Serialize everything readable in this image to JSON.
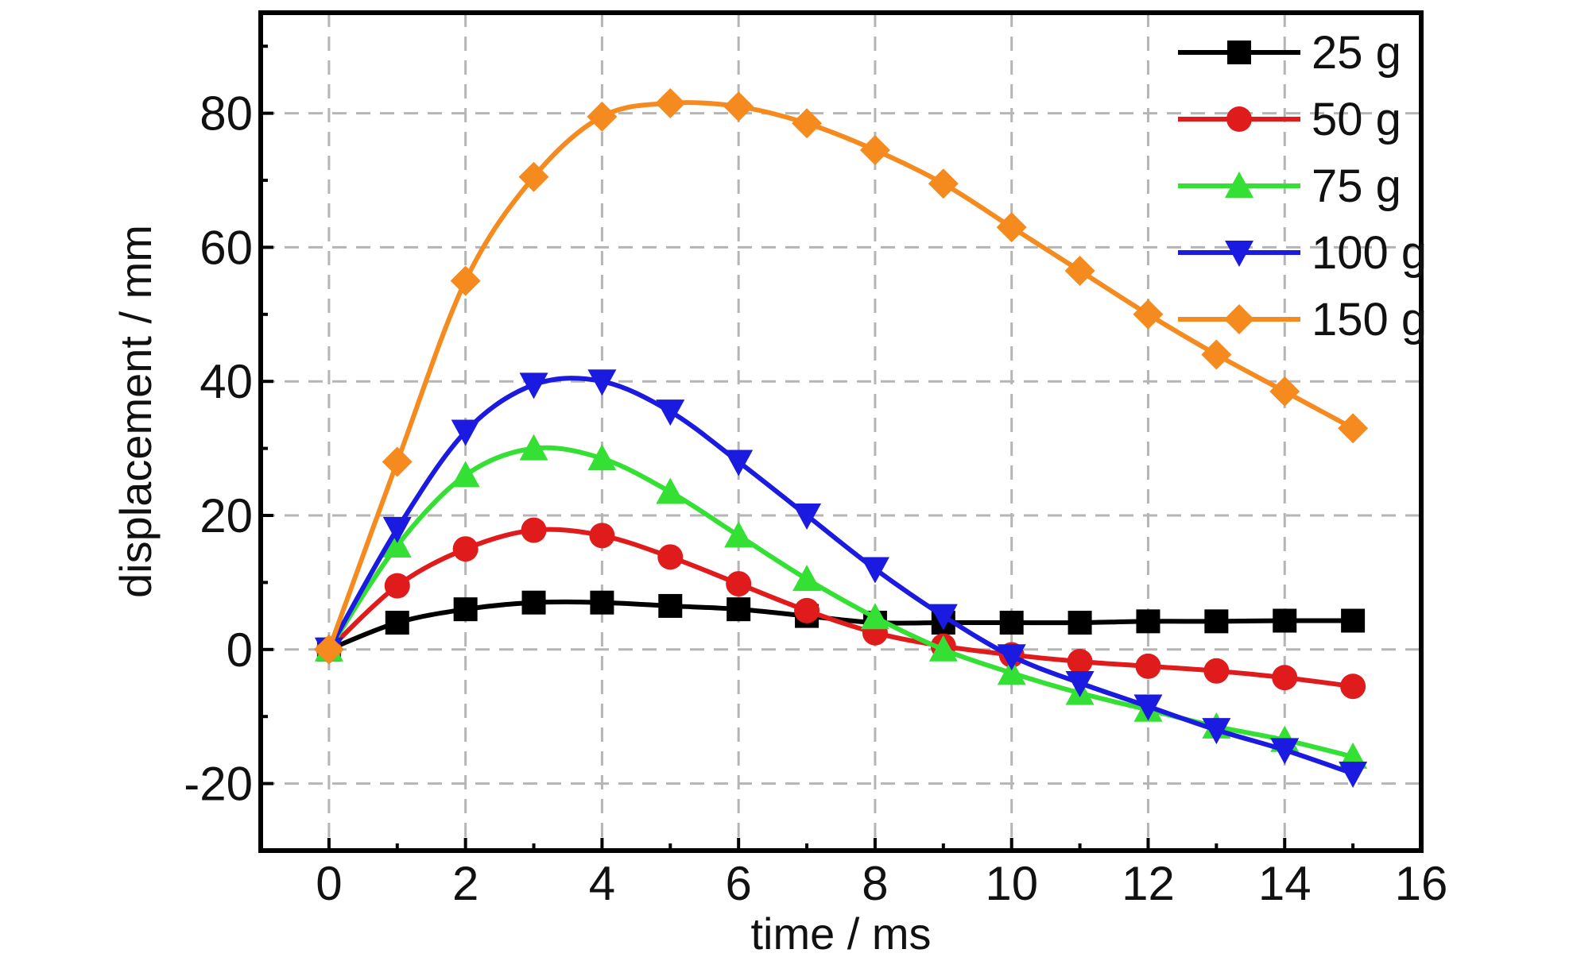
{
  "chart_data": {
    "type": "line",
    "title": "",
    "xlabel": "time / ms",
    "ylabel": "displacement / mm",
    "xlim": [
      -1,
      16
    ],
    "ylim": [
      -30,
      95
    ],
    "xticks": [
      0,
      2,
      4,
      6,
      8,
      10,
      12,
      14,
      16
    ],
    "xtick_labels": [
      "0",
      "2",
      "4",
      "6",
      "8",
      "10",
      "12",
      "14",
      "16"
    ],
    "yticks": [
      -20,
      0,
      20,
      40,
      60,
      80
    ],
    "ytick_labels": [
      "-20",
      "0",
      "20",
      "40",
      "60",
      "80"
    ],
    "grid": true,
    "legend_position": "top-right",
    "x": [
      0,
      1,
      2,
      3,
      4,
      5,
      6,
      7,
      8,
      9,
      10,
      11,
      12,
      13,
      14,
      15
    ],
    "series": [
      {
        "name": "25 g",
        "color": "#000000",
        "marker": "square",
        "values": [
          0,
          4,
          6,
          7,
          7,
          6.5,
          6,
          5,
          4,
          4,
          4,
          4,
          4.2,
          4.2,
          4.3,
          4.3
        ]
      },
      {
        "name": "50 g",
        "color": "#e01b1b",
        "marker": "circle",
        "values": [
          0,
          9.5,
          15,
          17.8,
          17,
          13.8,
          9.8,
          5.8,
          2.5,
          0.5,
          -0.8,
          -1.8,
          -2.5,
          -3.2,
          -4.2,
          -5.5
        ]
      },
      {
        "name": "75 g",
        "color": "#33e033",
        "marker": "triangle-up",
        "values": [
          0,
          15.5,
          26,
          30,
          28.5,
          23.5,
          17,
          10.5,
          4.8,
          0,
          -3.5,
          -6.5,
          -9,
          -11.5,
          -13.5,
          -16
        ]
      },
      {
        "name": "100 g",
        "color": "#1a1ae0",
        "marker": "triangle-down",
        "values": [
          0,
          18,
          32.5,
          39.5,
          40,
          35.5,
          28,
          20,
          12,
          5,
          -1,
          -5,
          -8.5,
          -12,
          -15,
          -18.5
        ]
      },
      {
        "name": "150 g",
        "color": "#f58a1f",
        "marker": "diamond",
        "values": [
          0,
          28,
          55,
          70.5,
          79.5,
          81.5,
          81,
          78.5,
          74.5,
          69.5,
          63,
          56.5,
          50,
          44,
          38.5,
          33
        ]
      }
    ]
  }
}
